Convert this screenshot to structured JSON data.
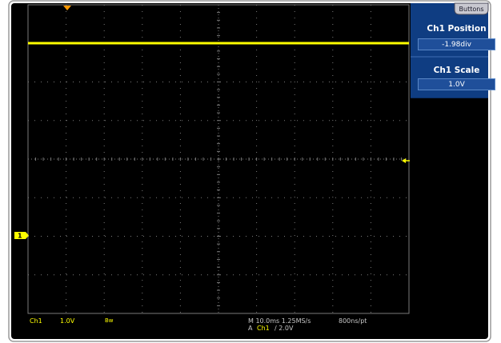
{
  "menu_tab": {
    "label": "Buttons"
  },
  "side_menu": {
    "items": [
      {
        "title": "Ch1 Position",
        "value": "-1.98div"
      },
      {
        "title": "Ch1 Scale",
        "value": "1.0V"
      }
    ]
  },
  "channel": {
    "marker_label": "1"
  },
  "readout": {
    "channel_name": "Ch1",
    "channel_scale": "1.0V",
    "bandwidth_limit": "Bw",
    "horizontal": "M 10.0ms 1.25MS/s",
    "resolution": "800ns/pt",
    "trigger_prefix": "A",
    "trigger_source": "Ch1",
    "trigger_level": "/ 2.0V"
  },
  "colors": {
    "trace": "#ffff00",
    "menu_panel": "#0f3d82",
    "menu_value": "#1f4f9a",
    "trigger_marker": "#ff9900",
    "readout_grey": "#c8c8c8",
    "graticule": "#7a7a7a"
  },
  "icons": {
    "trigger_position": "down-triangle-icon",
    "trigger_level": "left-arrow-icon",
    "channel_ground": "channel-marker-icon"
  }
}
